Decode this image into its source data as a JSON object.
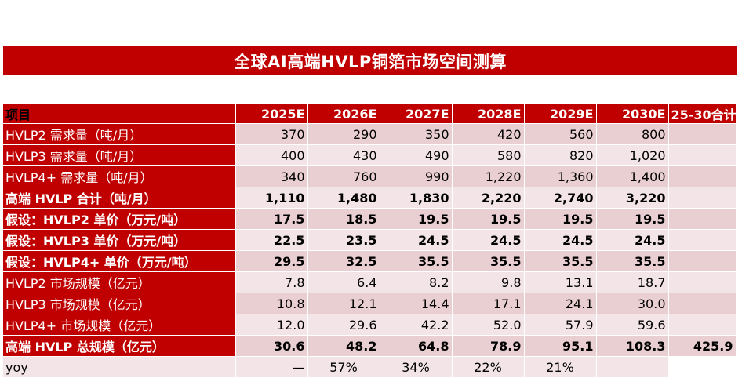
{
  "title": "全球AI高端HVLP铜箔市场空间测算",
  "header": {
    "label": "项目",
    "years": [
      "2025E",
      "2026E",
      "2027E",
      "2028E",
      "2029E",
      "2030E"
    ],
    "total": "25-30合计"
  },
  "rows": [
    {
      "label": "HVLP2 需求量（吨/月）",
      "values": [
        "370",
        "290",
        "350",
        "420",
        "560",
        "800"
      ],
      "total": "",
      "bold": false
    },
    {
      "label": "HVLP3 需求量（吨/月）",
      "values": [
        "400",
        "430",
        "490",
        "580",
        "820",
        "1,020"
      ],
      "total": "",
      "bold": false
    },
    {
      "label": "HVLP4+ 需求量（吨/月）",
      "values": [
        "340",
        "760",
        "990",
        "1,220",
        "1,360",
        "1,400"
      ],
      "total": "",
      "bold": false
    },
    {
      "label": "高端 HVLP 合计（吨/月）",
      "values": [
        "1,110",
        "1,480",
        "1,830",
        "2,220",
        "2,740",
        "3,220"
      ],
      "total": "",
      "bold": true
    },
    {
      "label": "假设：HVLP2 单价（万元/吨）",
      "values": [
        "17.5",
        "18.5",
        "19.5",
        "19.5",
        "19.5",
        "19.5"
      ],
      "total": "",
      "bold": true
    },
    {
      "label": "假设：HVLP3 单价（万元/吨）",
      "values": [
        "22.5",
        "23.5",
        "24.5",
        "24.5",
        "24.5",
        "24.5"
      ],
      "total": "",
      "bold": true
    },
    {
      "label": "假设：HVLP4+ 单价（万元/吨）",
      "values": [
        "29.5",
        "32.5",
        "35.5",
        "35.5",
        "35.5",
        "35.5"
      ],
      "total": "",
      "bold": true
    },
    {
      "label": "HVLP2 市场规模（亿元）",
      "values": [
        "7.8",
        "6.4",
        "8.2",
        "9.8",
        "13.1",
        "18.7"
      ],
      "total": "",
      "bold": false
    },
    {
      "label": "HVLP3 市场规模（亿元）",
      "values": [
        "10.8",
        "12.1",
        "14.4",
        "17.1",
        "24.1",
        "30.0"
      ],
      "total": "",
      "bold": false
    },
    {
      "label": "HVLP4+ 市场规模（亿元）",
      "values": [
        "12.0",
        "29.6",
        "42.2",
        "52.0",
        "57.9",
        "59.6"
      ],
      "total": "",
      "bold": false
    },
    {
      "label": "高端 HVLP 总规模（亿元）",
      "values": [
        "30.6",
        "48.2",
        "64.8",
        "78.9",
        "95.1",
        "108.3"
      ],
      "total": "425.9",
      "bold": true
    },
    {
      "label": "yoy",
      "values": [
        "—",
        "57%",
        "34%",
        "22%",
        "21%",
        ""
      ],
      "total": "",
      "bold": false
    }
  ]
}
